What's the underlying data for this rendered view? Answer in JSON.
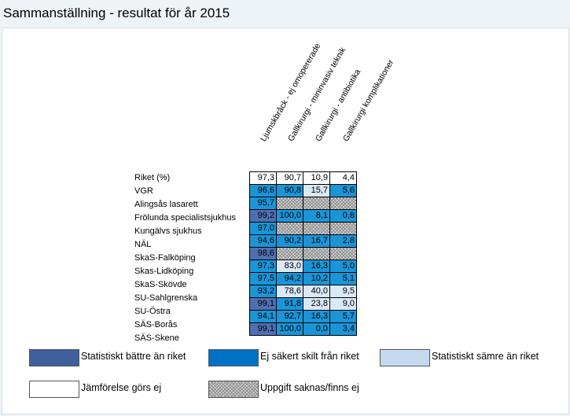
{
  "title": "Sammanställning - resultat för år 2015",
  "columns": [
    "Ljumskbråck - ej omopererade",
    "Gallkirurgi - mininvasiv teknik",
    "Gallkirurgi - antibiotika",
    "Gallkirurgi komplikationer"
  ],
  "rows": [
    {
      "label": "Riket (%)",
      "cells": [
        {
          "v": "97,3",
          "s": "none"
        },
        {
          "v": "90,7",
          "s": "none"
        },
        {
          "v": "10,9",
          "s": "none"
        },
        {
          "v": "4,4",
          "s": "none"
        }
      ]
    },
    {
      "label": "VGR",
      "cells": [
        {
          "v": "96,6",
          "s": "unsure"
        },
        {
          "v": "90,8",
          "s": "unsure"
        },
        {
          "v": "15,7",
          "s": "worse"
        },
        {
          "v": "5,6",
          "s": "unsure"
        }
      ]
    },
    {
      "label": "Alingsås lasarett",
      "cells": [
        {
          "v": "95,7",
          "s": "unsure"
        },
        {
          "v": "",
          "s": "missing"
        },
        {
          "v": "",
          "s": "missing"
        },
        {
          "v": "",
          "s": "missing"
        }
      ]
    },
    {
      "label": "Frölunda specialistsjukhus",
      "cells": [
        {
          "v": "99,2",
          "s": "better"
        },
        {
          "v": "100,0",
          "s": "unsure"
        },
        {
          "v": "8,1",
          "s": "unsure"
        },
        {
          "v": "0,8",
          "s": "unsure"
        }
      ]
    },
    {
      "label": "Kungälvs sjukhus",
      "cells": [
        {
          "v": "97,0",
          "s": "unsure"
        },
        {
          "v": "",
          "s": "missing"
        },
        {
          "v": "",
          "s": "missing"
        },
        {
          "v": "",
          "s": "missing"
        }
      ]
    },
    {
      "label": "NÄL",
      "cells": [
        {
          "v": "94,6",
          "s": "unsure"
        },
        {
          "v": "90,2",
          "s": "unsure"
        },
        {
          "v": "16,7",
          "s": "unsure"
        },
        {
          "v": "2,8",
          "s": "unsure"
        }
      ]
    },
    {
      "label": "SkaS-Falköping",
      "cells": [
        {
          "v": "98,6",
          "s": "better"
        },
        {
          "v": "",
          "s": "missing"
        },
        {
          "v": "",
          "s": "missing"
        },
        {
          "v": "",
          "s": "missing"
        }
      ]
    },
    {
      "label": "Skas-Lidköping",
      "cells": [
        {
          "v": "97,3",
          "s": "unsure"
        },
        {
          "v": "83,0",
          "s": "worse"
        },
        {
          "v": "16,3",
          "s": "unsure"
        },
        {
          "v": "5,0",
          "s": "unsure"
        }
      ]
    },
    {
      "label": "SkaS-Skövde",
      "cells": [
        {
          "v": "97,5",
          "s": "unsure"
        },
        {
          "v": "94,2",
          "s": "unsure"
        },
        {
          "v": "10,2",
          "s": "unsure"
        },
        {
          "v": "5,1",
          "s": "unsure"
        }
      ]
    },
    {
      "label": "SU-Sahlgrenska",
      "cells": [
        {
          "v": "93,2",
          "s": "unsure"
        },
        {
          "v": "78,6",
          "s": "worse"
        },
        {
          "v": "40,0",
          "s": "worse"
        },
        {
          "v": "9,5",
          "s": "worse"
        }
      ]
    },
    {
      "label": "SU-Östra",
      "cells": [
        {
          "v": "99,1",
          "s": "better"
        },
        {
          "v": "91,8",
          "s": "unsure"
        },
        {
          "v": "23,8",
          "s": "worse"
        },
        {
          "v": "9,0",
          "s": "worse"
        }
      ]
    },
    {
      "label": "SÄS-Borås",
      "cells": [
        {
          "v": "94,1",
          "s": "unsure"
        },
        {
          "v": "92,7",
          "s": "unsure"
        },
        {
          "v": "16,3",
          "s": "unsure"
        },
        {
          "v": "5,7",
          "s": "unsure"
        }
      ]
    },
    {
      "label": "SÄS-Skene",
      "cells": [
        {
          "v": "99,1",
          "s": "better"
        },
        {
          "v": "100,0",
          "s": "unsure"
        },
        {
          "v": "0,0",
          "s": "unsure"
        },
        {
          "v": "3,4",
          "s": "unsure"
        }
      ]
    }
  ],
  "legend": [
    {
      "key": "better",
      "label": "Statistiskt bättre än riket"
    },
    {
      "key": "unsure",
      "label": "Ej säkert skilt från riket"
    },
    {
      "key": "worse",
      "label": "Statistiskt sämre än riket"
    },
    {
      "key": "none",
      "label": "Jämförelse görs ej"
    },
    {
      "key": "missing",
      "label": "Uppgift saknas/finns ej"
    }
  ],
  "colors": {
    "better": "#4f6fb2",
    "unsure": "#1a95d8",
    "worse": "#dbe8f6",
    "none": "#ffffff",
    "missing": "#d8d8d8"
  }
}
